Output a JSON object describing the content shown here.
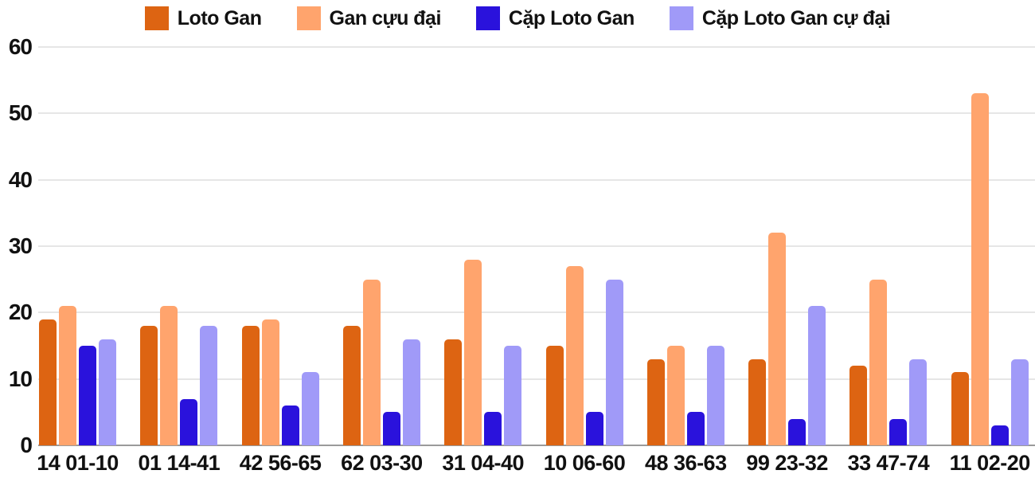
{
  "chart_data": {
    "type": "bar",
    "title": "",
    "xlabel": "",
    "ylabel": "",
    "categories": [
      "14 01-10",
      "01 14-41",
      "42 56-65",
      "62 03-30",
      "31 04-40",
      "10 06-60",
      "48 36-63",
      "99 23-32",
      "33 47-74",
      "11 02-20"
    ],
    "series": [
      {
        "name": "Loto Gan",
        "color": "#DD6412",
        "values": [
          19,
          18,
          18,
          18,
          16,
          15,
          13,
          13,
          12,
          11
        ]
      },
      {
        "name": "Gan cựu đại",
        "color": "#FFA46D",
        "values": [
          21,
          21,
          19,
          25,
          28,
          27,
          15,
          32,
          25,
          53
        ]
      },
      {
        "name": "Cặp Loto Gan",
        "color": "#2A12DC",
        "values": [
          15,
          7,
          6,
          5,
          5,
          5,
          5,
          4,
          4,
          3
        ]
      },
      {
        "name": "Cặp Loto Gan cự đại",
        "color": "#A09AF8",
        "values": [
          16,
          18,
          11,
          16,
          15,
          25,
          15,
          21,
          13,
          13
        ]
      }
    ],
    "ylim": [
      0,
      60
    ],
    "yticks": [
      0,
      10,
      20,
      30,
      40,
      50,
      60
    ],
    "ytick_labels": [
      "0",
      "10",
      "20",
      "30",
      "40",
      "50",
      "60"
    ],
    "grid": true,
    "legend_position": "top"
  },
  "colors": {
    "background": "#FFFFFF",
    "gridline": "#E6E6E6",
    "baseline": "#9A9A9A",
    "text": "#111111"
  }
}
